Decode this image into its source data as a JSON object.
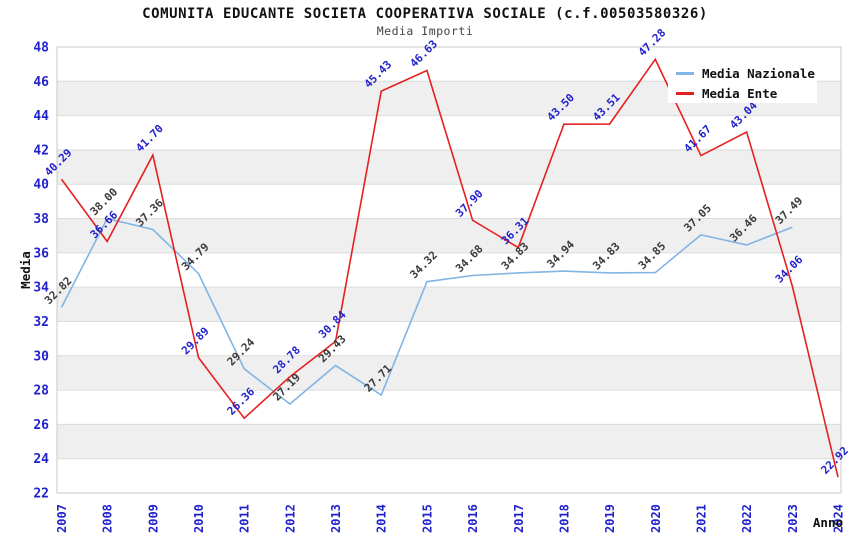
{
  "chart_data": {
    "type": "line",
    "title": "COMUNITA EDUCANTE SOCIETA COOPERATIVA SOCIALE (c.f.00503580326)",
    "subtitle": "Media Importi",
    "xlabel": "Anno",
    "ylabel": "Media",
    "ylim": [
      22,
      48
    ],
    "ytick_step": 2,
    "grid": "horizontal-gridlines-with-alternating-bands",
    "legend_position": "top-right",
    "categories": [
      "2007",
      "2008",
      "2009",
      "2010",
      "2011",
      "2012",
      "2013",
      "2014",
      "2015",
      "2016",
      "2017",
      "2018",
      "2019",
      "2020",
      "2021",
      "2022",
      "2023",
      "2024"
    ],
    "series": [
      {
        "name": "Media Nazionale",
        "color": "#82b4e4",
        "label_color": "#3a3a3a",
        "values": [
          32.82,
          38.0,
          37.36,
          34.79,
          29.24,
          27.19,
          29.43,
          27.71,
          34.32,
          34.68,
          34.83,
          34.94,
          34.83,
          34.85,
          37.05,
          36.46,
          37.49,
          null
        ]
      },
      {
        "name": "Media Ente",
        "color": "#e62020",
        "label_color": "#2222cc",
        "values": [
          40.29,
          36.66,
          41.7,
          29.89,
          26.36,
          28.78,
          30.84,
          45.43,
          46.63,
          37.9,
          36.31,
          43.5,
          43.51,
          47.28,
          41.67,
          43.04,
          34.06,
          22.92
        ]
      }
    ],
    "colors": {
      "tick_label": "#2222cc",
      "axis_label": "#111111",
      "title": "#111111",
      "subtitle": "#444444",
      "band": "#efefef",
      "gridline": "#dcdcdc",
      "plot_border": "#c8c8c8",
      "legend_text": "#111111",
      "background": "#ffffff"
    }
  }
}
